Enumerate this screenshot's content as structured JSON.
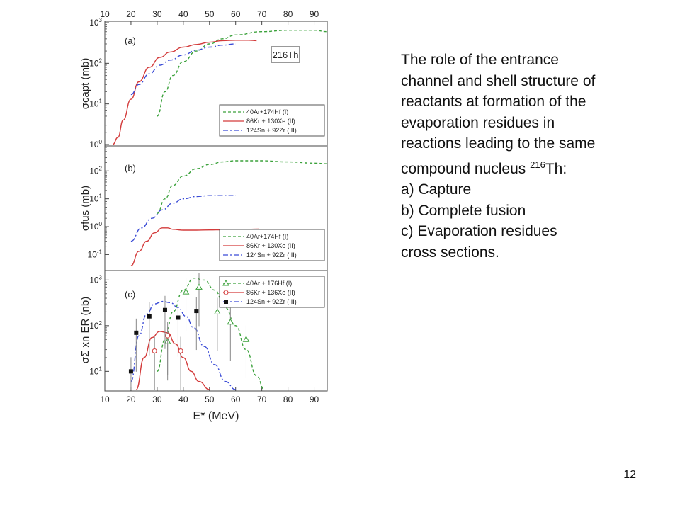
{
  "chart_data": [
    {
      "type": "line",
      "panel_label": "(a)",
      "ylabel": "σcapt (mb)",
      "y_scale": "log",
      "ylim": [
        1,
        1000
      ],
      "xlim": [
        10,
        95
      ],
      "x_ticks_top": [
        "10",
        "20",
        "30",
        "40",
        "50",
        "60",
        "70",
        "80",
        "90"
      ],
      "y_ticks": [
        "10^0",
        "10^1",
        "10^2",
        "10^3"
      ],
      "badge": "216Th",
      "legend": [
        "40Ar+174Hf (I)",
        "86Kr + 130Xe (II)",
        "124Sn + 92Zr (III)"
      ],
      "series": [
        {
          "name": "40Ar+174Hf (I)",
          "style": "dashed",
          "color": "#3aa13a",
          "x": [
            30,
            33,
            36,
            40,
            45,
            50,
            55,
            60,
            70,
            80,
            90,
            95
          ],
          "y": [
            5,
            20,
            50,
            110,
            200,
            300,
            400,
            500,
            600,
            650,
            650,
            600
          ]
        },
        {
          "name": "86Kr + 130Xe (II)",
          "style": "solid",
          "color": "#d33b3b",
          "x": [
            13,
            15,
            17,
            20,
            23,
            27,
            31,
            35,
            40,
            45,
            50,
            55,
            60,
            65,
            68
          ],
          "y": [
            0.7,
            1.5,
            4,
            13,
            35,
            80,
            140,
            190,
            250,
            290,
            330,
            360,
            370,
            370,
            360
          ]
        },
        {
          "name": "124Sn + 92Zr (III)",
          "style": "dashdot",
          "color": "#3a4bd6",
          "x": [
            20,
            23,
            27,
            31,
            35,
            40,
            45,
            50,
            55,
            60
          ],
          "y": [
            17,
            30,
            55,
            90,
            120,
            160,
            210,
            250,
            280,
            300
          ]
        }
      ]
    },
    {
      "type": "line",
      "panel_label": "(b)",
      "ylabel": "σfus (mb)",
      "y_scale": "log",
      "ylim": [
        0.03,
        700
      ],
      "xlim": [
        10,
        95
      ],
      "y_ticks": [
        "10^-1",
        "10^0",
        "10^1",
        "10^2"
      ],
      "legend": [
        "40Ar+174Hf (I)",
        "86Kr + 130Xe (II)",
        "124Sn + 92Zr (III)"
      ],
      "series": [
        {
          "name": "40Ar+174Hf (I)",
          "style": "dashed",
          "color": "#3aa13a",
          "x": [
            30,
            33,
            36,
            40,
            45,
            50,
            55,
            60,
            70,
            80,
            90,
            95
          ],
          "y": [
            3,
            10,
            30,
            65,
            120,
            170,
            210,
            230,
            230,
            210,
            190,
            180
          ]
        },
        {
          "name": "86Kr + 130Xe (II)",
          "style": "solid",
          "color": "#d33b3b",
          "x": [
            20,
            23,
            26,
            29,
            32,
            34,
            36,
            40,
            45,
            50,
            55,
            60,
            65,
            69
          ],
          "y": [
            0.04,
            0.13,
            0.3,
            0.6,
            0.9,
            0.9,
            0.8,
            0.75,
            0.75,
            0.76,
            0.77,
            0.78,
            0.8,
            0.82
          ]
        },
        {
          "name": "124Sn + 92Zr (III)",
          "style": "dashdot",
          "color": "#3a4bd6",
          "x": [
            20,
            24,
            28,
            32,
            36,
            40,
            45,
            50,
            55,
            60
          ],
          "y": [
            0.3,
            0.9,
            2,
            4,
            7,
            10,
            12,
            13,
            13,
            13
          ]
        }
      ]
    },
    {
      "type": "line",
      "panel_label": "(c)",
      "ylabel": "σΣ xn ER (nb)",
      "xlabel": "E* (MeV)",
      "y_scale": "log",
      "ylim": [
        4,
        1500
      ],
      "xlim": [
        10,
        95
      ],
      "x_ticks": [
        "10",
        "20",
        "30",
        "40",
        "50",
        "60",
        "70",
        "80",
        "90"
      ],
      "y_ticks": [
        "10^1",
        "10^2",
        "10^3"
      ],
      "legend": [
        "40Ar + 176Hf (I)",
        "86Kr + 136Xe (II)",
        "124Sn + 92Zr (III)"
      ],
      "series": [
        {
          "name": "40Ar + 176Hf (I)",
          "style": "dashed",
          "color": "#3aa13a",
          "x": [
            30,
            33,
            36,
            40,
            44,
            48,
            52,
            56,
            60,
            64,
            68,
            71
          ],
          "y": [
            10,
            50,
            200,
            600,
            1100,
            1000,
            600,
            250,
            100,
            30,
            8,
            4
          ]
        },
        {
          "name": "86Kr + 136Xe (II)",
          "style": "solid",
          "color": "#d33b3b",
          "x": [
            22,
            25,
            28,
            31,
            34,
            37,
            40,
            43,
            46,
            50
          ],
          "y": [
            4,
            20,
            55,
            75,
            70,
            40,
            20,
            10,
            6,
            4
          ]
        },
        {
          "name": "124Sn + 92Zr (III)",
          "style": "dashdot",
          "color": "#3a4bd6",
          "x": [
            20,
            23,
            26,
            29,
            32,
            35,
            38,
            41,
            44,
            48,
            52,
            56,
            60
          ],
          "y": [
            6,
            60,
            180,
            300,
            340,
            320,
            250,
            160,
            90,
            35,
            14,
            6,
            4
          ]
        }
      ],
      "points": [
        {
          "name": "40Ar + 176Hf (I)",
          "marker": "triangle",
          "color": "#3aa13a",
          "x": [
            34,
            41,
            46,
            53,
            58,
            64
          ],
          "y": [
            45,
            550,
            700,
            200,
            120,
            50
          ]
        },
        {
          "name": "86Kr + 136Xe (II)",
          "marker": "circle",
          "color": "#d33b3b",
          "x": [
            29,
            34,
            39
          ],
          "y": [
            28,
            60,
            28
          ]
        },
        {
          "name": "124Sn + 92Zr (III)",
          "marker": "square",
          "color": "#111111",
          "x": [
            20,
            22,
            27,
            33,
            38,
            45
          ],
          "y": [
            10,
            70,
            160,
            220,
            150,
            210
          ]
        }
      ]
    }
  ],
  "description_lines": [
    "The role of the entrance",
    "channel and shell structure of",
    "reactants  at formation of the",
    "evaporation residues in",
    "reactions leading to the same",
    "compound nucleus 216Th:",
    "a) Capture",
    "b) Complete fusion",
    "c) Evaporation residues",
    "cross sections."
  ],
  "page_number": "12"
}
